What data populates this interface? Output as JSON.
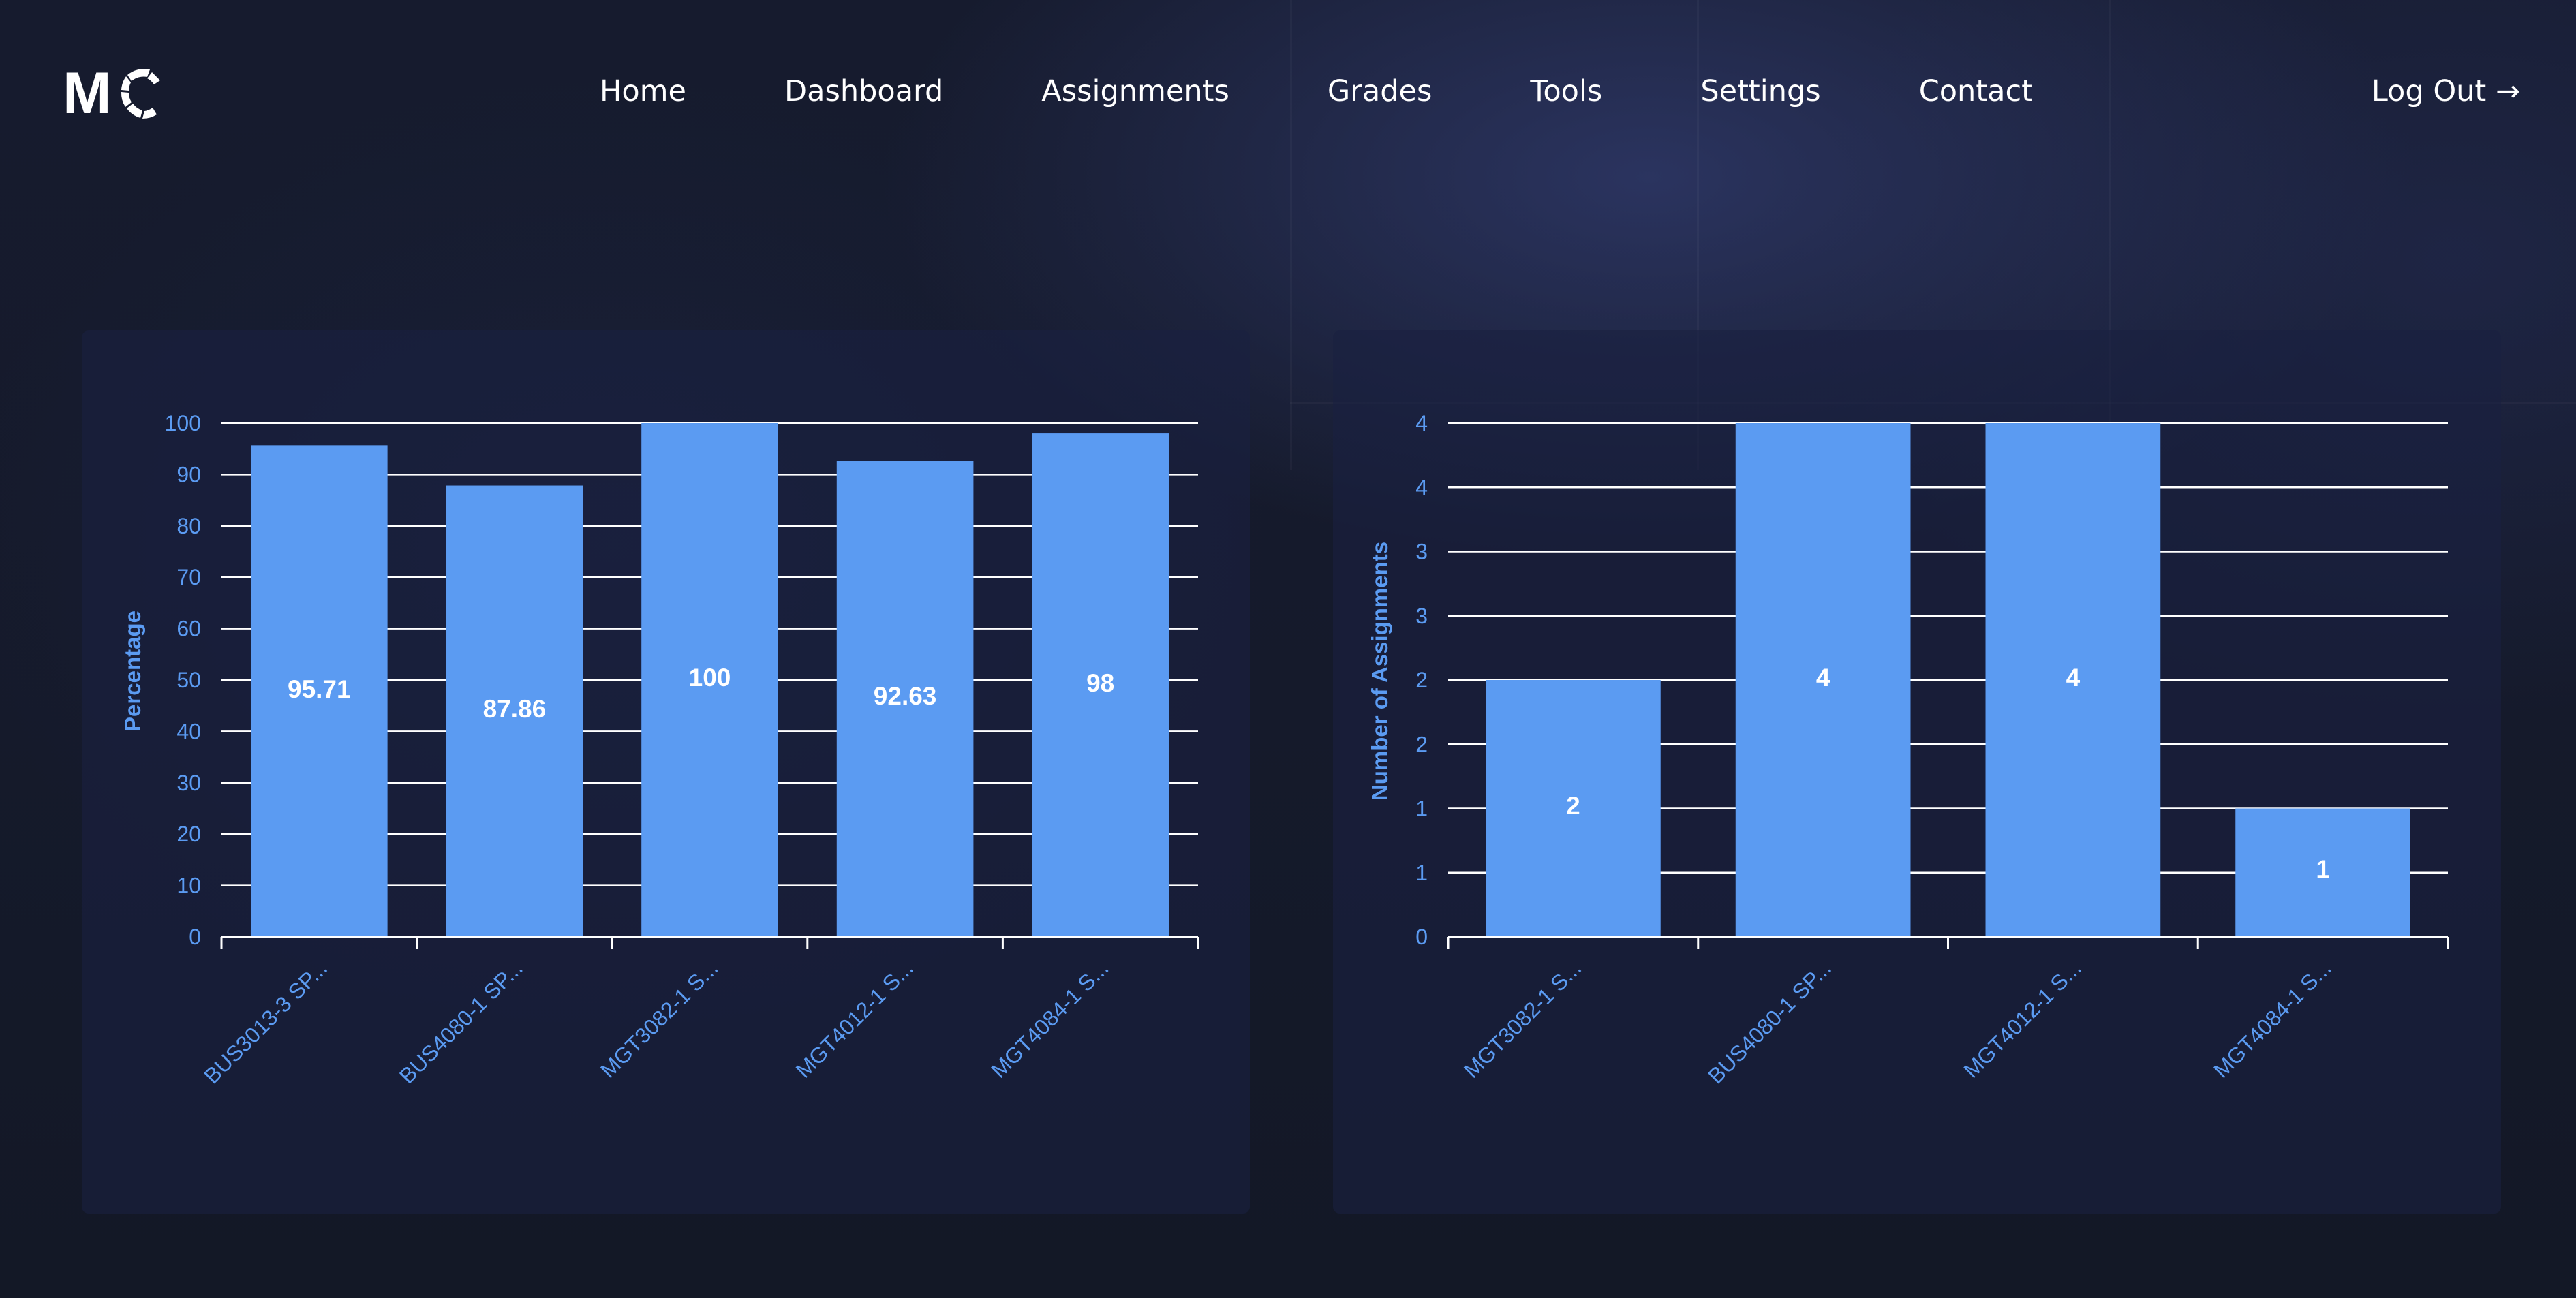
{
  "brand": {
    "logo_text": "MC"
  },
  "nav": {
    "links": [
      "Home",
      "Dashboard",
      "Assignments",
      "Grades",
      "Tools",
      "Settings",
      "Contact"
    ],
    "logout": "Log Out →"
  },
  "colors": {
    "background": "#131826",
    "panel": "#1a2140",
    "bar": "#5b9bf2",
    "text": "#ffffff"
  },
  "chart_data": [
    {
      "type": "bar",
      "categories": [
        "BUS3013-3 SP...",
        "BUS4080-1 SP...",
        "MGT3082-1 S...",
        "MGT4012-1 S...",
        "MGT4084-1 S..."
      ],
      "values": [
        95.71,
        87.86,
        100,
        92.63,
        98
      ],
      "value_labels": [
        "95.71",
        "87.86",
        "100",
        "92.63",
        "98"
      ],
      "ylabel": "Percentage",
      "ylim": [
        0,
        100
      ],
      "yticks": [
        "0",
        "10",
        "20",
        "30",
        "40",
        "50",
        "60",
        "70",
        "80",
        "90",
        "100"
      ],
      "grid": true
    },
    {
      "type": "bar",
      "categories": [
        "MGT3082-1 S...",
        "BUS4080-1 SP...",
        "MGT4012-1 S...",
        "MGT4084-1 S..."
      ],
      "values": [
        2,
        4,
        4,
        1
      ],
      "value_labels": [
        "2",
        "4",
        "4",
        "1"
      ],
      "ylabel": "Number of Assignments",
      "ylim": [
        0,
        4
      ],
      "yticks": [
        "0",
        "1",
        "1",
        "2",
        "2",
        "3",
        "3",
        "4",
        "4"
      ],
      "grid": true
    }
  ]
}
